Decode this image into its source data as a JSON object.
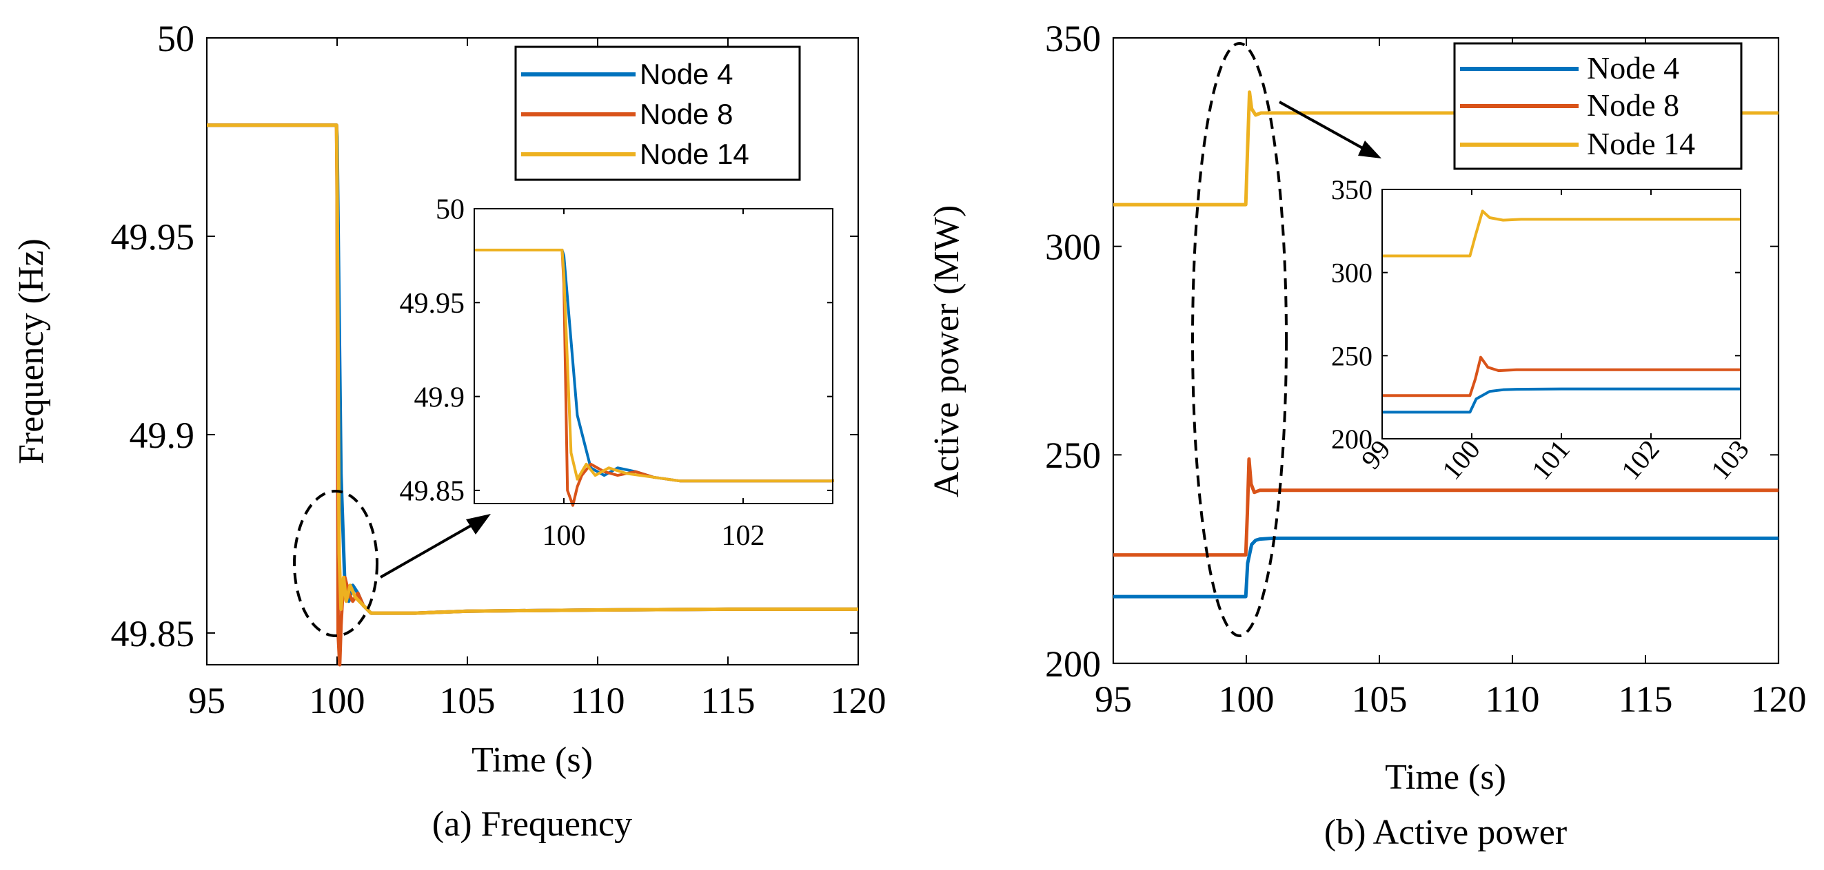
{
  "colors": {
    "node4": "#0072BD",
    "node8": "#D95319",
    "node14": "#EDB120",
    "axis": "#000000"
  },
  "chart_data": [
    {
      "id": "frequency",
      "type": "line",
      "caption": "(a) Frequency",
      "xlabel": "Time (s)",
      "ylabel": "Frequency (Hz)",
      "xlim": [
        95,
        120
      ],
      "ylim": [
        49.842,
        50
      ],
      "xticks": [
        95,
        100,
        105,
        110,
        115,
        120
      ],
      "yticks": [
        49.85,
        49.9,
        49.95,
        50
      ],
      "ytick_labels": [
        "49.85",
        "49.9",
        "49.95",
        "50"
      ],
      "legend": [
        "Node 4",
        "Node 8",
        "Node 14"
      ],
      "legend_position": "top-right",
      "series": [
        {
          "name": "Node 4",
          "x": [
            95,
            99.98,
            100.0,
            100.15,
            100.3,
            100.45,
            100.6,
            100.8,
            101.0,
            101.3,
            101.6,
            102,
            103,
            105,
            110,
            115,
            120
          ],
          "y": [
            49.978,
            49.978,
            49.975,
            49.89,
            49.862,
            49.858,
            49.862,
            49.86,
            49.857,
            49.855,
            49.855,
            49.855,
            49.855,
            49.8555,
            49.8558,
            49.856,
            49.856
          ]
        },
        {
          "name": "Node 8",
          "x": [
            95,
            99.98,
            100.0,
            100.04,
            100.1,
            100.15,
            100.2,
            100.3,
            100.45,
            100.6,
            100.8,
            101.0,
            101.3,
            101.6,
            102,
            103,
            105,
            110,
            115,
            120
          ],
          "y": [
            49.978,
            49.978,
            49.96,
            49.85,
            49.842,
            49.852,
            49.858,
            49.864,
            49.86,
            49.858,
            49.86,
            49.857,
            49.855,
            49.855,
            49.855,
            49.855,
            49.8555,
            49.8558,
            49.856,
            49.856
          ]
        },
        {
          "name": "Node 14",
          "x": [
            95,
            99.98,
            100.0,
            100.08,
            100.15,
            100.25,
            100.35,
            100.5,
            100.7,
            101.0,
            101.3,
            101.6,
            102,
            103,
            105,
            110,
            115,
            120
          ],
          "y": [
            49.978,
            49.978,
            49.965,
            49.87,
            49.856,
            49.864,
            49.858,
            49.862,
            49.859,
            49.857,
            49.855,
            49.855,
            49.855,
            49.855,
            49.8555,
            49.8558,
            49.856,
            49.856
          ]
        }
      ],
      "inset": {
        "xlim": [
          99,
          103
        ],
        "ylim": [
          49.843,
          50
        ],
        "xticks": [
          100,
          102
        ],
        "yticks": [
          49.85,
          49.9,
          49.95,
          50
        ],
        "ytick_labels": [
          "49.85",
          "49.9",
          "49.95",
          "50"
        ]
      },
      "annotation": "dashed ellipse around the frequency dip near t = 100 s with arrow to inset"
    },
    {
      "id": "active-power",
      "type": "line",
      "caption": "(b) Active power",
      "xlabel": "Time (s)",
      "ylabel": "Active power (MW)",
      "xlim": [
        95,
        120
      ],
      "ylim": [
        200,
        350
      ],
      "xticks": [
        95,
        100,
        105,
        110,
        115,
        120
      ],
      "yticks": [
        200,
        250,
        300,
        350
      ],
      "legend": [
        "Node 4",
        "Node 8",
        "Node 14"
      ],
      "legend_position": "top-right",
      "series": [
        {
          "name": "Node 4",
          "x": [
            95,
            99.98,
            100.05,
            100.2,
            100.35,
            100.5,
            101,
            102,
            105,
            120
          ],
          "y": [
            216,
            216,
            224,
            228.5,
            229.5,
            229.8,
            230,
            230,
            230,
            230
          ]
        },
        {
          "name": "Node 8",
          "x": [
            95,
            99.98,
            100.04,
            100.1,
            100.18,
            100.3,
            100.5,
            101,
            102,
            105,
            120
          ],
          "y": [
            226,
            226,
            236,
            249,
            243,
            241,
            241.5,
            241.5,
            241.5,
            241.5,
            241.5
          ]
        },
        {
          "name": "Node 14",
          "x": [
            95,
            99.98,
            100.04,
            100.12,
            100.2,
            100.35,
            100.55,
            101,
            102,
            105,
            120
          ],
          "y": [
            310,
            310,
            322,
            337,
            333,
            331.5,
            332,
            332,
            332,
            332,
            332
          ]
        }
      ],
      "inset": {
        "xlim": [
          99,
          103
        ],
        "ylim": [
          200,
          350
        ],
        "xticks": [
          99,
          100,
          101,
          102,
          103
        ],
        "yticks": [
          200,
          250,
          300,
          350
        ]
      },
      "annotation": "dashed ellipse around the step change near t = 100 s with arrow to inset"
    }
  ]
}
